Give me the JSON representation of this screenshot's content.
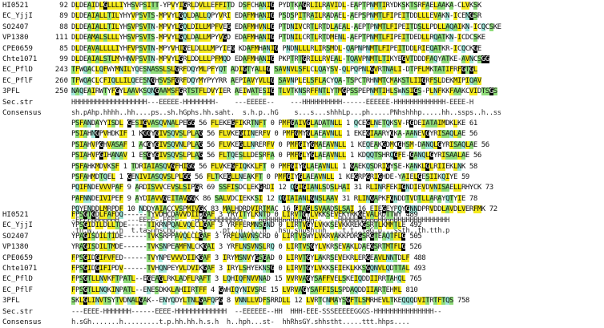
{
  "blocks": [
    {
      "rows": [
        {
          "label": "HI0521",
          "start": "92",
          "seq": "DLDEAIDLGLLLIYHSVPSITT-YPVYIGRLDVLLEFFITD DSFCHANIG PYDTKAGRLILRAVIDL-EAPTPNMTIRYDKSKTSRFAELAAKA-CLVKSK"
        },
        {
          "label": "EC_YjjI",
          "start": "89",
          "seq": "DLDEAIALLTILYHYVPSVTS-MPVYLGQLDALLQPYVRI EDAFMHANIG PSDSPITRAILRADAEL-AEPSPNMTLFIPEITDDLLLEVAKN-ICENGSR"
        },
        {
          "label": "SO2407",
          "start": "88",
          "seq": "DLDEAIALLTILYHSVPSVTN-MPVYLGQLDILLMPFVEG EDAFMHVNLG PTDNIVCRTLRTDLAEAL-AEPTPNMTLFIPEITDSLLPDLLAQAIKN-ICQCSKE"
        },
        {
          "label": "VP1380",
          "start": "111",
          "seq": "DLDEAMALSLLLYHSVPSVTS-MPVYLGQLDALLMPYVGD EDAFMHANIG PTDNILCRTLRTDMENL-AEPTPNMTLFIPEITDEDLLRQATKN-ICDCSKE"
        },
        {
          "label": "CPE0659",
          "start": "85",
          "seq": "DLDEAVALLLLIYHFVPSVTN-MPYVHIGELDLLLMPYIEG KDAFMHANIG PNDNLLLRLIRSMDL-QAPNPNMTLFIPEITDDLRIEQATKR-ICQCKGE"
        },
        {
          "label": "Chte1071",
          "start": "99",
          "seq": "DLDEAIALSTLMYHNVPSVTN-MPVYLGRLDDLLLPFMQD EDAFMHANIG PKPTRTGRILLRVEAL-TQAVPNMTLTIKYEGVTDDDFAQYATKE-AVNCSGG"
        },
        {
          "label": "EC_PflD",
          "start": "243",
          "seq": "TFWQACLQFWYMNILYQESNASSLSLGRFDQYMLPFYQT ADIGTYALLG SAVNVLSFLCLQAYSV-QLPQPNLGVRTNALI-DTPFLMKTATIFRFGTGL"
        },
        {
          "label": "EC_PflF",
          "start": "260",
          "seq": "TFWQACLCFIQLLILQEESNGHSVSFGRFDQYMYPYYRR AEPIAVYVLLG SAVNPLELSFLACYQA-TSPCTRHNMTCMAKSTLIIGRFSLDEKMIPIQAV"
        },
        {
          "label": "3PFL",
          "start": "250",
          "seq": "NAQEAIRWTYFGYLAAVKSQNGAAMSFGRTSTFLDVYIER AEIWATESIG TLVTKNSRFFNTLYTMGPSSPEPNMTIHLSWNSIGS-PLNFKKFAAKCVIDTSGS"
        },
        {
          "label": "Sec.str",
          "start": "",
          "seq": "HHHHHHHHHHHHHHHHHHH---EEEEE-HHHHHHHH-    ---EEEEE--    ---HHHHHHHHHH------EEEEEE-HHHHHHHHHHHHH-EEEE-H"
        },
        {
          "label": "Consensus",
          "start": "",
          "seq": "sh.pAhp.hhhh..hh....ps..sh.hGphs.hh.saht.  s.h.p..hG    s...s...shhhLp...ph.....PNhshhhp.....hh..ssps..h..ss"
        }
      ]
    },
    {
      "rows": [
        {
          "label": "",
          "start": "",
          "seq": "PSFANDAYYISDL GESIGVASQVNALPEGG 56 FLEKEGFIKRTNFT 0 PMFGAIVGLADATNLL 1 QCEGLNETQKSV-RGDEIATAIMDKLKE 61"
        },
        {
          "label": "",
          "start": "",
          "seq": "PSIAHNGPVHDKIF 1 KGGYGIVSQVSLPLAG 56 FLVKEGIINERFV 0 PMFGMYGLAEAVNLL 1 EKEGIAARYGKA-AANEVGYRISAQLAE 56"
        },
        {
          "label": "",
          "start": "",
          "seq": "PSIAHVPGHVASAF 1 ACGYGIVSQVNLPLAG 56 FLVKEGLLNRERFV 0 PMFGIYGMAEAVNLL 1 KEQEAKGDMCGHSM-DANQLGYRISAQLAE 56"
        },
        {
          "label": "",
          "start": "",
          "seq": "PSIAHVPGIHANAV 1 ESGYGIVSQVSLPLAG 56 FLTQESLLDESRFA 0 PMFGLYGLAEAVNLL 1 KDQQTSHRQGFE-GANQLGYRISAALAE 56"
        },
        {
          "label": "",
          "start": "",
          "seq": "PSFAHKMDVKSF 1 TDRIAIASQVGFHIGG 56 FLVKEGFIQKKLFT 0 PMFGIYGLAEAVNLL 1 GAEKQSDRIGYSE-KANKLGLRIIEKLNK 58"
        },
        {
          "label": "",
          "start": "",
          "seq": "PSFAHMDTQEL 1 GENIVIASQVSLPLGG 56 FLTKEGLLNEAKFT 0 PMFGIYGLAEAVNLL 1 KEGRPGRIGHDE-YAIELGESIIKQIYE 59"
        },
        {
          "label": "",
          "start": "",
          "seq": "PQIFNDEVVVPAF 9 ARDISVVCEVSLSIPGR 69 SSFISDCLEKGRDI 12 QGIGIANLSDSLHAI 31 RLINRFEKIGNDIEVDVNISAELLRHYCK 73"
        },
        {
          "label": "",
          "start": "",
          "seq": "PAFNNDEIVIPEF 9 AYDIAVVGEITAVGGK 86 SALVDCIEKKSI 12 QGIAIANLGNSLAAV 31 RLINGAPKFGNDDTVDTLLARAYQTYIE 78"
        },
        {
          "label": "",
          "start": "",
          "seq": "PQYENDDLMRPDF 10 NDDYAIACCVSPMIVGK 83 MALHDRDVIRTMAC 16 GIAGLSVAADSLSAI 16 EIEGEYPQYGNNDPRVDDLAVDLVERFMK 72"
        },
        {
          "label": "",
          "start": "",
          "seq": "-EEEEHHHHHHH  ---EEEE--EEEE-  -HHHHHHHHHHHH-   HHHHHHHHHHHHHH--  --HHHHHHHHHHHHHHHHHHHHHHHHHHHH"
        },
        {
          "label": "",
          "start": "",
          "seq": ".th.N.......h  t.tashhsChp......st  ..pt..h..t..h  .hsh.shpshthh  ..t.t..taG.p...ssth..th.tth.p"
        }
      ]
    },
    {
      "rows": [
        {
          "label": "HI0521",
          "start": "",
          "seq": "FPSGTGDLFAFDQ------TYVDHCDAVVDIIDGAF 3 YRYITYLKNTD 0 LIRVTGYLVKKSEVEKYRKGEVALRDTTWY 489"
        },
        {
          "label": "EC_YjjI",
          "start": "",
          "seq": "YPSGIDILDLLTDE-----TIKRNPQALVQLCLGAF 3 YRFFERMNSGND 0 LIRTVGYLVKKSEVKKREKGSRTLKMMTLE 492"
        },
        {
          "label": "SO2407",
          "start": "",
          "seq": "YPAGISDILTIDE------TVKSRPPAVQLCLGAF 3 YRFLNAVNSCRD 0 LIRTVSWYLVKRVAKKPDRGSRGTEAQTFLG 505"
        },
        {
          "label": "VP1380",
          "start": "",
          "seq": "YRAGISDILTMDE------TVKSNPEAMFNLCKGAI 3 YRFLNSVNSLRQ 0 LIRTVSGYLVKRSEVAKLDAEGSRTMTFLG 526"
        },
        {
          "label": "CPE0659",
          "start": "",
          "seq": "FPSGIDGIFVFED------TVYNPEVVVDIIKGAF 3 IRYMSNVYGSGAD 0 LIRVTGYLAKRSEVEKRLERGEAVLNNTDLF 488"
        },
        {
          "label": "Chte1071",
          "start": "",
          "seq": "FPSGIDGIFIPDV------TVHQNPEYVLDVIKGAF 3 IRYLSHYEKNSG 0 LIRVTGYLVKKSEIEKLKKSGQNVLQDTTAL 493"
        },
        {
          "label": "EC_PflD",
          "start": "",
          "seq": "FPSGTLLNVKFTPATL--EGEAGLRKLADFLRAFT 3 LQHIQFNVVNAD 15 VVRVAGYSAFFVELSKEIQDDIIRRTAHQL 765"
        },
        {
          "label": "EC_PflF",
          "start": "",
          "seq": "FPSGTLLNQKINPATL--ENESDKKLAHIIRTFF 4 GWHIQYNIVSRE 15 LVRVAGYSAFFISLSPDAQDDIIARTEHML 810"
        },
        {
          "label": "3PFL",
          "start": "",
          "seq": "SKLGLINVTSYTVDNALGAK--ENYQDYLTNLGAFQPG 8 VNNLLVDFSRRDLL 12 LVRTCNMAYSGFTLSMRHEVLTKEQQQDVITRTFTQS 758"
        },
        {
          "label": "Sec.str",
          "start": "",
          "seq": "---EEEE-HHHHHHH------EEEE-HHHHHHHHHHHHH  --EEEEEE--HH  HHH-EEE-SSSEEEEEGGGS-HHHHHHHHHHHHHHH--"
        },
        {
          "label": "Consensus",
          "start": "",
          "seq": "h.sGh.......h.........t.p.hh.hh.h.s.h  h..hph...st-  hhRhsGY.shhstht.....ttt.hhps...."
        }
      ]
    }
  ]
}
